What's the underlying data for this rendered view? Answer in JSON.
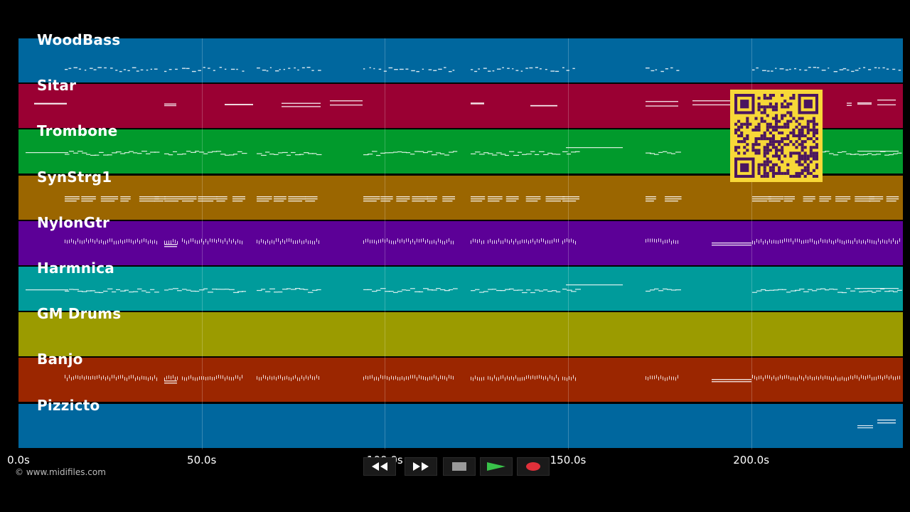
{
  "tracks": [
    {
      "name": "WoodBass",
      "color": "#00679e",
      "pattern": "bass"
    },
    {
      "name": "Sitar",
      "color": "#9a0033",
      "pattern": "sparse"
    },
    {
      "name": "Trombone",
      "color": "#019a2c",
      "pattern": "line"
    },
    {
      "name": "SynStrg1",
      "color": "#9b6600",
      "pattern": "chords"
    },
    {
      "name": "NylonGtr",
      "color": "#5c0097",
      "pattern": "ticks"
    },
    {
      "name": "Harmnica",
      "color": "#009b9b",
      "pattern": "line"
    },
    {
      "name": "GM Drums",
      "color": "#9b9b00",
      "pattern": "none"
    },
    {
      "name": "Banjo",
      "color": "#9b2600",
      "pattern": "ticks"
    },
    {
      "name": "Pizzicto",
      "color": "#00679e",
      "pattern": "end"
    }
  ],
  "timeline": {
    "ticks": [
      "0.0s",
      "50.0s",
      "100.0s",
      "150.0s",
      "200.0s"
    ],
    "tick_values": [
      0,
      50,
      100,
      150,
      200
    ],
    "end_seconds": 241.4
  },
  "copyright": "© www.midifiles.com",
  "transport": {
    "rewind_icon": "rewind-icon",
    "fast_forward_icon": "fast-forward-icon",
    "stop_icon": "stop-icon",
    "play_icon": "play-icon",
    "record_icon": "record-icon",
    "play_color": "#39c24a",
    "record_color": "#e0303a"
  },
  "qr_code": {
    "color": "#f7d838",
    "dark": "#4a1560"
  }
}
